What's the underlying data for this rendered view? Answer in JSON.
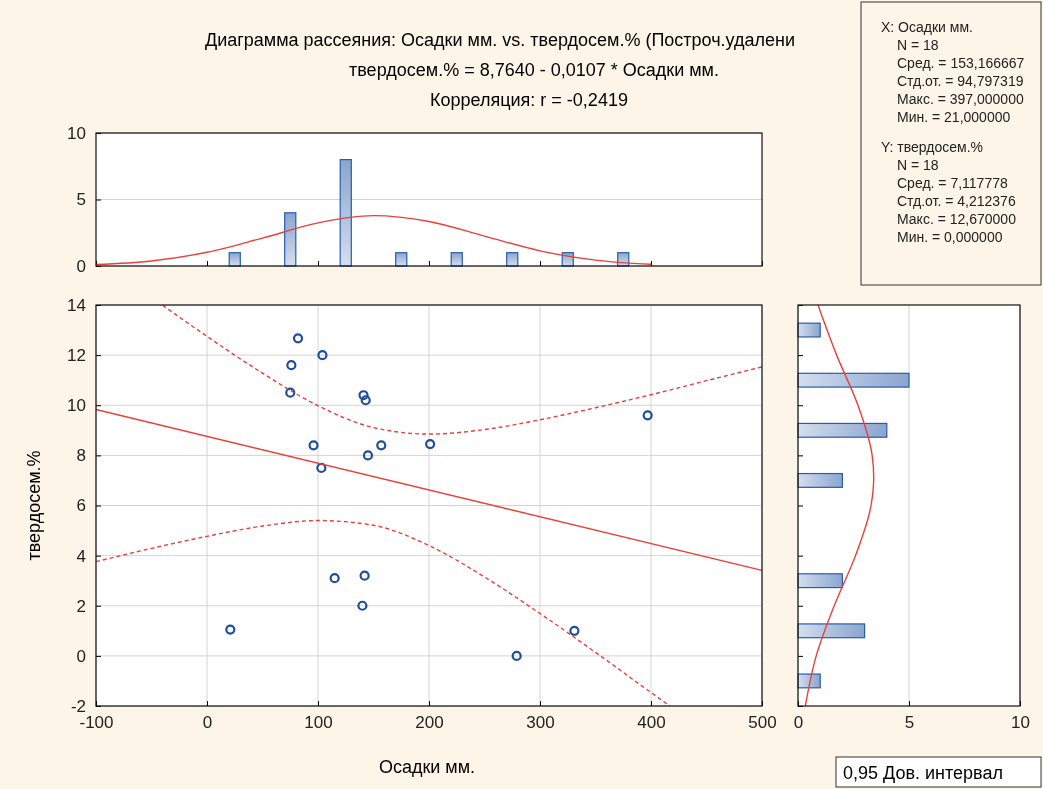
{
  "chart_data": [
    {
      "type": "other",
      "title": "Диаграмма рассеяния: Осадки мм. vs. твердосем.% (Построч.удалени",
      "subtitle": "твердосем.% = 8,7640 - 0,0107  * Осадки мм.",
      "annotations": [
        "Корреляция: r =  -0,2419"
      ]
    },
    {
      "type": "bar",
      "x": [
        25,
        75,
        125,
        175,
        225,
        275,
        325,
        375
      ],
      "values": [
        1,
        4,
        8,
        1,
        1,
        1,
        1,
        1
      ],
      "color": "#2a5caa",
      "xlim": [
        -100,
        500
      ],
      "xticks": [
        {
          "value": -100,
          "label": null
        },
        {
          "value": 0,
          "label": null
        },
        {
          "value": 100,
          "label": null
        },
        {
          "value": 200,
          "label": null
        },
        {
          "value": 300,
          "label": null
        },
        {
          "value": 400,
          "label": null
        },
        {
          "value": 500,
          "label": null
        }
      ],
      "ylim": [
        0,
        10
      ],
      "yticks": [
        0,
        5,
        10
      ],
      "tick_labels": "y",
      "grid": "y",
      "series": [
        {
          "type": "line",
          "color": "#e8403a",
          "x": [
            -100,
            -50,
            0,
            50,
            100,
            150,
            200,
            250,
            300,
            350,
            400
          ],
          "values": [
            0.11,
            0.38,
            1.03,
            2.1,
            3.24,
            3.79,
            3.35,
            2.25,
            1.14,
            0.44,
            0.13
          ]
        }
      ]
    },
    {
      "type": "scatter",
      "xlabel": "Осадки мм.",
      "ylabel": "твердосем.%",
      "xlim": [
        -100,
        500
      ],
      "xticks": [
        -100,
        0,
        100,
        200,
        300,
        400,
        500
      ],
      "ylim": [
        -2,
        14
      ],
      "yticks": [
        -2,
        0,
        2,
        4,
        6,
        8,
        10,
        12,
        14
      ],
      "grid": true,
      "annotations": [
        "0,95 Дов. интервал"
      ],
      "series": [
        {
          "type": "scatter",
          "color": "#1f4e9c",
          "marker": "circle",
          "x": [
            21,
            75,
            76,
            82,
            96,
            103,
            104,
            115,
            141,
            143,
            140,
            142,
            145,
            157,
            201,
            279,
            331,
            397
          ],
          "values": [
            1.05,
            10.5,
            11.6,
            12.67,
            8.4,
            7.5,
            12.0,
            3.1,
            10.4,
            10.2,
            2.0,
            3.2,
            8.0,
            8.4,
            8.45,
            0,
            1.0,
            9.6
          ]
        },
        {
          "type": "line",
          "color": "#e8403a",
          "line_style": "solid",
          "x": [
            -100,
            500
          ],
          "values": [
            9.83,
            3.41
          ]
        },
        {
          "type": "line",
          "color": "#e8403a",
          "line_style": "dashed",
          "x": [
            -40,
            0,
            50,
            100,
            150,
            200,
            250,
            300,
            350,
            400,
            450,
            500
          ],
          "values": [
            13.99,
            12.75,
            11.28,
            9.98,
            9.11,
            8.85,
            9.03,
            9.42,
            9.9,
            10.42,
            10.98,
            11.53
          ]
        },
        {
          "type": "line",
          "color": "#e8403a",
          "line_style": "dashed",
          "x": [
            -100,
            -50,
            0,
            50,
            100,
            150,
            200,
            250,
            300,
            350,
            400,
            417
          ],
          "values": [
            3.76,
            4.29,
            4.77,
            5.18,
            5.4,
            5.21,
            4.4,
            3.15,
            1.69,
            0.14,
            -1.46,
            -2.0
          ]
        }
      ]
    },
    {
      "type": "bar",
      "orientation": "horizontal",
      "x": [
        -1,
        1,
        3,
        7,
        9,
        11,
        13
      ],
      "values": [
        1,
        3,
        2,
        2,
        4,
        5,
        1
      ],
      "color": "#2a5caa",
      "xlim": [
        0,
        10
      ],
      "xticks": [
        0,
        5,
        10
      ],
      "ylim": [
        -2,
        14
      ],
      "yticks": [
        {
          "value": -2,
          "label": null
        },
        {
          "value": 0,
          "label": null
        },
        {
          "value": 2,
          "label": null
        },
        {
          "value": 4,
          "label": null
        },
        {
          "value": 6,
          "label": null
        },
        {
          "value": 8,
          "label": null
        },
        {
          "value": 10,
          "label": null
        },
        {
          "value": 12,
          "label": null
        },
        {
          "value": 14,
          "label": null
        }
      ],
      "tick_labels": "x",
      "grid": "x",
      "series": [
        {
          "type": "line",
          "color": "#e8403a",
          "x": [
            -2,
            0,
            2,
            4,
            6,
            7.12,
            8,
            10,
            12,
            14
          ],
          "values": [
            0.33,
            0.82,
            1.63,
            2.59,
            3.29,
            3.41,
            3.34,
            2.7,
            1.74,
            0.9
          ]
        }
      ]
    },
    {
      "type": "other",
      "annotations": [
        "X:  Осадки мм.",
        "N = 18",
        "Сред. = 153,166667",
        "Стд.от. = 94,797319",
        "Макс. = 397,000000",
        "Мин. = 21,000000",
        "Y:  твердосем.%",
        "N = 18",
        "Сред. = 7,117778",
        "Стд.от. = 4,212376",
        "Макс. = 12,670000",
        "Мин. = 0,000000"
      ]
    }
  ]
}
